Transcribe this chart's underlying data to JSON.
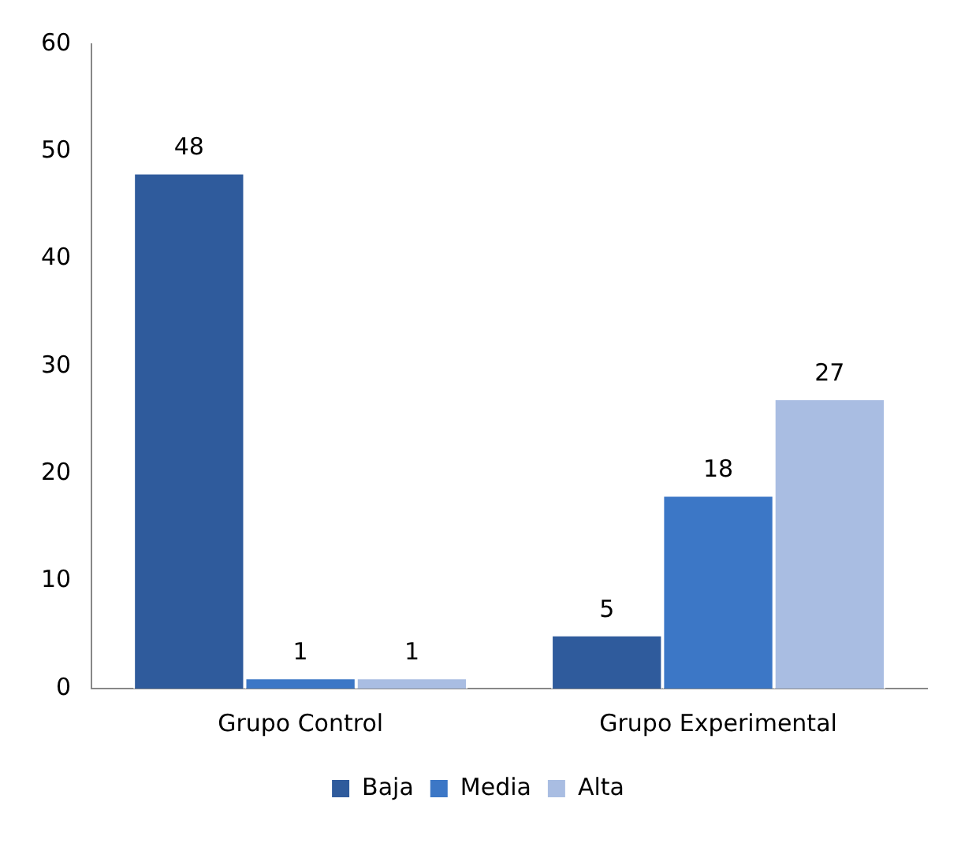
{
  "chart_data": {
    "type": "bar",
    "categories": [
      "Grupo Control",
      "Grupo Experimental"
    ],
    "series": [
      {
        "name": "Baja",
        "color": "#2f5b9c",
        "values": [
          48,
          5
        ]
      },
      {
        "name": "Media",
        "color": "#3c77c6",
        "values": [
          1,
          18
        ]
      },
      {
        "name": "Alta",
        "color": "#a9bde2",
        "values": [
          1,
          27
        ]
      }
    ],
    "ylim": [
      0,
      60
    ],
    "yticks": [
      0,
      10,
      20,
      30,
      40,
      50,
      60
    ],
    "grid": false,
    "legend": "bottom",
    "data_labels": true
  }
}
